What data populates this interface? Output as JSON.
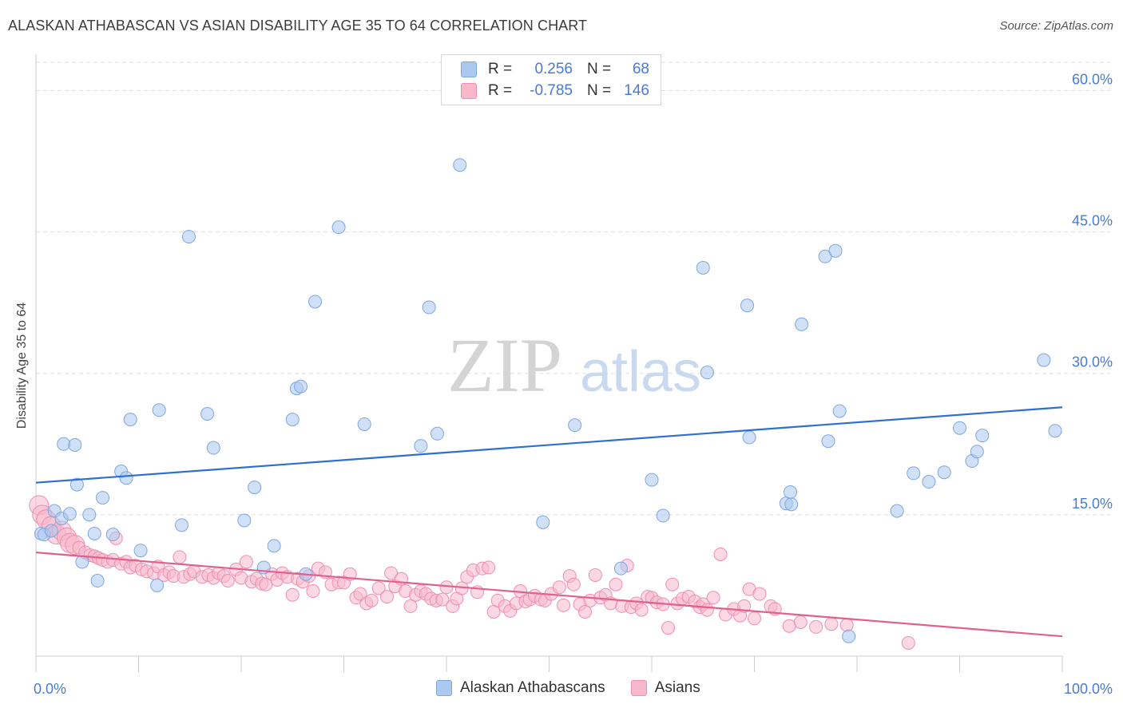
{
  "title": "ALASKAN ATHABASCAN VS ASIAN DISABILITY AGE 35 TO 64 CORRELATION CHART",
  "source": "Source: ZipAtlas.com",
  "watermark": {
    "zip": "ZIP",
    "atlas": "atlas"
  },
  "legend": {
    "rows": [
      {
        "r_label": "R =",
        "r_value": "0.256",
        "n_label": "N =",
        "n_value": "68"
      },
      {
        "r_label": "R =",
        "r_value": "-0.785",
        "n_label": "N =",
        "n_value": "146"
      }
    ]
  },
  "bottom_legend": {
    "series1": "Alaskan Athabascans",
    "series2": "Asians"
  },
  "colors": {
    "blue_fill": "#aac8f0",
    "blue_stroke": "#7fa6e0",
    "blue_line": "#2f6fd0",
    "pink_fill": "#f7b8cc",
    "pink_stroke": "#ee8fb0",
    "pink_line": "#e0608f",
    "tick_text": "#4a7bd0",
    "grid": "#dddddd"
  },
  "chart_data": {
    "type": "scatter",
    "title": "ALASKAN ATHABASCAN VS ASIAN DISABILITY AGE 35 TO 64 CORRELATION CHART",
    "xlabel": "",
    "ylabel": "Disability Age 35 to 64",
    "xlim": [
      0,
      100
    ],
    "ylim": [
      0,
      63
    ],
    "x_tick_labels": [
      "0.0%",
      "100.0%"
    ],
    "y_ticks": [
      15,
      30,
      45,
      60
    ],
    "y_tick_labels": [
      "15.0%",
      "30.0%",
      "45.0%",
      "60.0%"
    ],
    "grid": true,
    "series": [
      {
        "name": "Alaskan Athabascans",
        "color": "#aac8f0",
        "R": 0.256,
        "N": 68,
        "trend": {
          "x": [
            0,
            100
          ],
          "y": [
            18.4,
            26.4
          ]
        },
        "points": [
          [
            0.5,
            13.0
          ],
          [
            0.8,
            12.9
          ],
          [
            1.5,
            13.3
          ],
          [
            1.8,
            15.4
          ],
          [
            2.5,
            14.6
          ],
          [
            2.7,
            22.5
          ],
          [
            3.3,
            15.1
          ],
          [
            3.8,
            22.4
          ],
          [
            4.0,
            18.2
          ],
          [
            4.5,
            10.0
          ],
          [
            5.2,
            15.0
          ],
          [
            5.7,
            13.0
          ],
          [
            6.0,
            8.0
          ],
          [
            6.5,
            16.8
          ],
          [
            7.5,
            12.9
          ],
          [
            8.3,
            19.6
          ],
          [
            8.8,
            18.9
          ],
          [
            9.2,
            25.1
          ],
          [
            10.2,
            11.2
          ],
          [
            11.8,
            7.5
          ],
          [
            12.0,
            26.1
          ],
          [
            14.2,
            13.9
          ],
          [
            14.9,
            44.5
          ],
          [
            16.7,
            25.7
          ],
          [
            17.3,
            22.1
          ],
          [
            20.3,
            14.4
          ],
          [
            21.3,
            17.9
          ],
          [
            22.2,
            9.4
          ],
          [
            23.2,
            11.7
          ],
          [
            25.0,
            25.1
          ],
          [
            25.4,
            28.4
          ],
          [
            25.8,
            28.6
          ],
          [
            26.3,
            8.7
          ],
          [
            27.2,
            37.6
          ],
          [
            29.5,
            45.5
          ],
          [
            32.0,
            24.6
          ],
          [
            37.5,
            22.3
          ],
          [
            38.3,
            37.0
          ],
          [
            39.1,
            23.6
          ],
          [
            41.3,
            52.1
          ],
          [
            49.4,
            14.2
          ],
          [
            52.5,
            24.5
          ],
          [
            57.0,
            9.3
          ],
          [
            60.0,
            18.7
          ],
          [
            61.1,
            14.9
          ],
          [
            65.0,
            41.2
          ],
          [
            65.4,
            30.1
          ],
          [
            69.3,
            37.2
          ],
          [
            69.5,
            23.2
          ],
          [
            73.1,
            16.2
          ],
          [
            73.5,
            17.4
          ],
          [
            73.6,
            16.1
          ],
          [
            74.6,
            35.2
          ],
          [
            76.9,
            42.4
          ],
          [
            77.2,
            22.8
          ],
          [
            77.9,
            43.0
          ],
          [
            78.3,
            26.0
          ],
          [
            79.2,
            2.1
          ],
          [
            83.9,
            15.4
          ],
          [
            85.5,
            19.4
          ],
          [
            87.0,
            18.5
          ],
          [
            88.5,
            19.5
          ],
          [
            90.0,
            24.2
          ],
          [
            91.2,
            20.7
          ],
          [
            91.7,
            21.7
          ],
          [
            92.2,
            23.4
          ],
          [
            98.2,
            31.4
          ],
          [
            99.3,
            23.9
          ]
        ]
      },
      {
        "name": "Asians",
        "color": "#f7b8cc",
        "R": -0.785,
        "N": 146,
        "trend": {
          "x": [
            0,
            100
          ],
          "y": [
            11.0,
            2.1
          ]
        },
        "points": [
          [
            0.3,
            16.0
          ],
          [
            0.6,
            15.0
          ],
          [
            1.0,
            14.5
          ],
          [
            1.5,
            13.8
          ],
          [
            2.0,
            12.9
          ],
          [
            2.5,
            13.3
          ],
          [
            3.0,
            12.6
          ],
          [
            3.3,
            12.0
          ],
          [
            3.8,
            11.8
          ],
          [
            4.2,
            11.5
          ],
          [
            4.8,
            11.0
          ],
          [
            5.3,
            10.7
          ],
          [
            5.7,
            10.6
          ],
          [
            6.1,
            10.4
          ],
          [
            6.5,
            10.2
          ],
          [
            7.0,
            10.0
          ],
          [
            7.5,
            10.2
          ],
          [
            7.8,
            12.5
          ],
          [
            8.3,
            9.8
          ],
          [
            8.8,
            10.0
          ],
          [
            9.2,
            9.4
          ],
          [
            9.7,
            9.6
          ],
          [
            10.3,
            9.2
          ],
          [
            10.8,
            9.0
          ],
          [
            11.5,
            8.8
          ],
          [
            11.9,
            9.5
          ],
          [
            12.5,
            8.6
          ],
          [
            13.0,
            8.9
          ],
          [
            13.4,
            8.5
          ],
          [
            14.0,
            10.5
          ],
          [
            14.4,
            8.4
          ],
          [
            15.0,
            8.7
          ],
          [
            15.4,
            9.0
          ],
          [
            16.2,
            8.4
          ],
          [
            16.8,
            8.6
          ],
          [
            17.3,
            8.3
          ],
          [
            17.8,
            8.8
          ],
          [
            18.3,
            8.5
          ],
          [
            18.7,
            8.0
          ],
          [
            19.5,
            9.2
          ],
          [
            20.0,
            8.3
          ],
          [
            20.5,
            10.0
          ],
          [
            21.0,
            7.9
          ],
          [
            21.5,
            8.2
          ],
          [
            22.0,
            7.7
          ],
          [
            22.4,
            7.6
          ],
          [
            23.0,
            8.7
          ],
          [
            23.5,
            8.1
          ],
          [
            24.0,
            8.8
          ],
          [
            24.5,
            8.4
          ],
          [
            25.0,
            6.5
          ],
          [
            25.5,
            8.2
          ],
          [
            26.0,
            7.9
          ],
          [
            26.6,
            8.5
          ],
          [
            27.0,
            6.9
          ],
          [
            27.5,
            9.3
          ],
          [
            28.2,
            8.9
          ],
          [
            28.8,
            7.6
          ],
          [
            29.5,
            7.8
          ],
          [
            30.0,
            7.8
          ],
          [
            30.6,
            8.7
          ],
          [
            31.2,
            6.2
          ],
          [
            31.6,
            6.6
          ],
          [
            32.2,
            5.6
          ],
          [
            32.7,
            5.9
          ],
          [
            33.4,
            7.2
          ],
          [
            34.2,
            6.3
          ],
          [
            34.6,
            8.8
          ],
          [
            35.0,
            7.4
          ],
          [
            35.6,
            8.2
          ],
          [
            36.0,
            6.9
          ],
          [
            36.5,
            5.3
          ],
          [
            37.0,
            6.5
          ],
          [
            37.5,
            6.9
          ],
          [
            38.0,
            6.6
          ],
          [
            38.5,
            6.1
          ],
          [
            39.0,
            5.9
          ],
          [
            39.6,
            6.0
          ],
          [
            40.0,
            7.3
          ],
          [
            40.6,
            5.3
          ],
          [
            41.0,
            6.1
          ],
          [
            41.5,
            7.2
          ],
          [
            42.0,
            8.4
          ],
          [
            42.6,
            9.1
          ],
          [
            43.0,
            6.8
          ],
          [
            43.5,
            9.3
          ],
          [
            44.1,
            9.4
          ],
          [
            44.6,
            4.7
          ],
          [
            45.0,
            5.9
          ],
          [
            45.7,
            5.3
          ],
          [
            46.2,
            4.8
          ],
          [
            46.8,
            5.6
          ],
          [
            47.2,
            6.9
          ],
          [
            47.7,
            5.8
          ],
          [
            48.1,
            6.0
          ],
          [
            48.6,
            6.4
          ],
          [
            49.2,
            6.0
          ],
          [
            49.6,
            5.9
          ],
          [
            50.2,
            6.6
          ],
          [
            51.0,
            7.3
          ],
          [
            51.4,
            5.4
          ],
          [
            52.0,
            8.5
          ],
          [
            52.4,
            7.6
          ],
          [
            53.0,
            5.5
          ],
          [
            53.5,
            4.7
          ],
          [
            54.0,
            5.9
          ],
          [
            54.5,
            8.6
          ],
          [
            55.0,
            6.2
          ],
          [
            55.5,
            6.5
          ],
          [
            56.0,
            5.6
          ],
          [
            56.5,
            7.6
          ],
          [
            57.1,
            5.3
          ],
          [
            57.6,
            9.6
          ],
          [
            58.0,
            5.2
          ],
          [
            58.5,
            5.6
          ],
          [
            59.0,
            4.9
          ],
          [
            59.6,
            6.3
          ],
          [
            60.0,
            6.2
          ],
          [
            60.5,
            5.7
          ],
          [
            61.1,
            5.5
          ],
          [
            61.6,
            3.0
          ],
          [
            62.0,
            7.6
          ],
          [
            62.5,
            5.6
          ],
          [
            63.0,
            6.1
          ],
          [
            63.6,
            6.3
          ],
          [
            64.2,
            5.8
          ],
          [
            64.7,
            5.2
          ],
          [
            65.0,
            5.5
          ],
          [
            65.4,
            4.9
          ],
          [
            66.0,
            6.2
          ],
          [
            66.7,
            10.8
          ],
          [
            67.2,
            4.4
          ],
          [
            68.0,
            5.0
          ],
          [
            68.6,
            4.3
          ],
          [
            69.0,
            5.3
          ],
          [
            69.5,
            7.1
          ],
          [
            70.0,
            4.0
          ],
          [
            70.5,
            6.6
          ],
          [
            71.6,
            5.3
          ],
          [
            72.0,
            5.0
          ],
          [
            73.4,
            3.2
          ],
          [
            74.5,
            3.6
          ],
          [
            76.0,
            3.1
          ],
          [
            77.5,
            3.4
          ],
          [
            79.0,
            3.3
          ],
          [
            85.0,
            1.4
          ]
        ]
      }
    ]
  }
}
